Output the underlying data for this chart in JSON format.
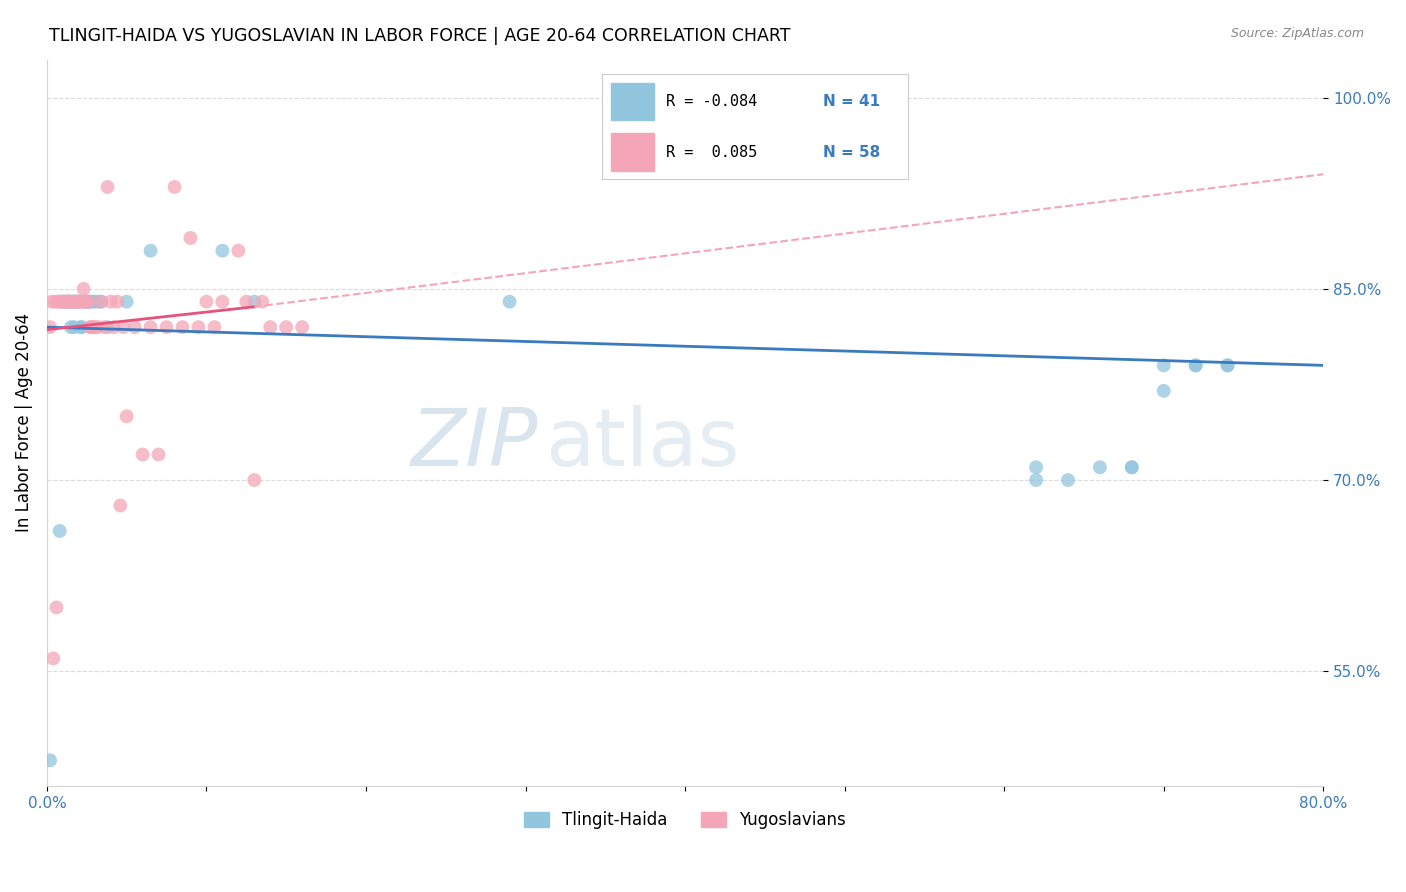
{
  "title": "TLINGIT-HAIDA VS YUGOSLAVIAN IN LABOR FORCE | AGE 20-64 CORRELATION CHART",
  "source": "Source: ZipAtlas.com",
  "ylabel": "In Labor Force | Age 20-64",
  "xlim": [
    0.0,
    0.8
  ],
  "ylim": [
    0.46,
    1.03
  ],
  "x_ticks": [
    0.0,
    0.1,
    0.2,
    0.3,
    0.4,
    0.5,
    0.6,
    0.7,
    0.8
  ],
  "x_tick_labels": [
    "0.0%",
    "",
    "",
    "",
    "",
    "",
    "",
    "",
    "80.0%"
  ],
  "y_ticks": [
    0.55,
    0.7,
    0.85,
    1.0
  ],
  "y_tick_labels": [
    "55.0%",
    "70.0%",
    "85.0%",
    "100.0%"
  ],
  "color_blue": "#92c5de",
  "color_pink": "#f4a6b8",
  "trend_blue": "#3a7abf",
  "trend_pink": "#e8527a",
  "trend_pink_dash": "#f4a6b8",
  "watermark_zip": "ZIP",
  "watermark_atlas": "atlas",
  "tlingit_x": [
    0.002,
    0.008,
    0.01,
    0.012,
    0.013,
    0.014,
    0.015,
    0.016,
    0.017,
    0.018,
    0.019,
    0.02,
    0.021,
    0.022,
    0.023,
    0.024,
    0.025,
    0.026,
    0.027,
    0.028,
    0.03,
    0.032,
    0.034,
    0.038,
    0.05,
    0.065,
    0.11,
    0.13,
    0.29,
    0.62,
    0.64,
    0.68,
    0.7,
    0.72,
    0.74,
    0.62,
    0.66,
    0.68,
    0.7,
    0.72,
    0.74
  ],
  "tlingit_y": [
    0.48,
    0.66,
    0.84,
    0.84,
    0.84,
    0.84,
    0.82,
    0.84,
    0.82,
    0.84,
    0.84,
    0.84,
    0.82,
    0.82,
    0.84,
    0.84,
    0.84,
    0.84,
    0.84,
    0.84,
    0.84,
    0.84,
    0.84,
    0.82,
    0.84,
    0.88,
    0.88,
    0.84,
    0.84,
    0.71,
    0.7,
    0.71,
    0.79,
    0.79,
    0.79,
    0.7,
    0.71,
    0.71,
    0.77,
    0.79,
    0.79
  ],
  "yugoslav_x": [
    0.002,
    0.003,
    0.004,
    0.005,
    0.006,
    0.007,
    0.008,
    0.009,
    0.01,
    0.011,
    0.012,
    0.013,
    0.014,
    0.015,
    0.016,
    0.017,
    0.018,
    0.019,
    0.02,
    0.021,
    0.022,
    0.023,
    0.024,
    0.025,
    0.026,
    0.027,
    0.028,
    0.029,
    0.03,
    0.032,
    0.034,
    0.036,
    0.038,
    0.04,
    0.042,
    0.044,
    0.046,
    0.048,
    0.05,
    0.055,
    0.06,
    0.065,
    0.07,
    0.075,
    0.08,
    0.085,
    0.09,
    0.095,
    0.1,
    0.105,
    0.11,
    0.12,
    0.125,
    0.13,
    0.135,
    0.14,
    0.15,
    0.16
  ],
  "yugoslav_y": [
    0.82,
    0.84,
    0.56,
    0.84,
    0.6,
    0.84,
    0.84,
    0.84,
    0.84,
    0.84,
    0.84,
    0.84,
    0.84,
    0.84,
    0.84,
    0.84,
    0.84,
    0.84,
    0.84,
    0.84,
    0.84,
    0.85,
    0.84,
    0.84,
    0.84,
    0.82,
    0.82,
    0.82,
    0.82,
    0.82,
    0.84,
    0.82,
    0.93,
    0.84,
    0.82,
    0.84,
    0.68,
    0.82,
    0.75,
    0.82,
    0.72,
    0.82,
    0.72,
    0.82,
    0.93,
    0.82,
    0.89,
    0.82,
    0.84,
    0.82,
    0.84,
    0.88,
    0.84,
    0.7,
    0.84,
    0.82,
    0.82,
    0.82
  ]
}
